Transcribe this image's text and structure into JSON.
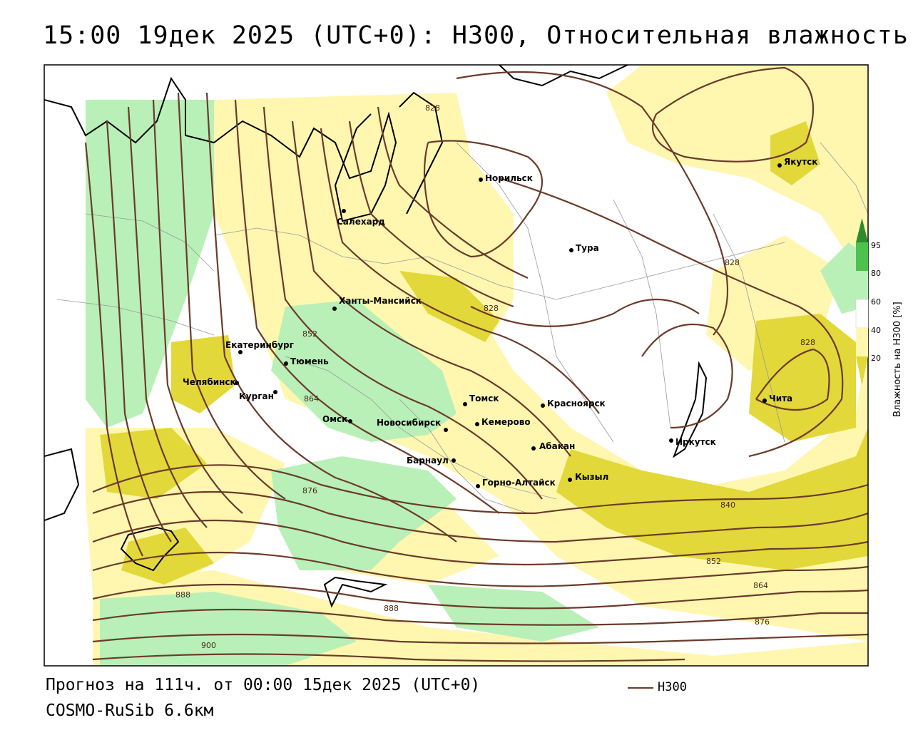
{
  "title": "15:00 19дек 2025 (UTC+0): H300, Относительная влажность",
  "forecast_line": "Прогноз на 111ч. от 00:00 15дек 2025 (UTC+0)",
  "model_line": "COSMO-RuSib 6.6км",
  "legend": {
    "line_label": "H300",
    "line_color": "#6b3b2a"
  },
  "colorbar": {
    "title": "Влажность на H300 [%]",
    "ticks": [
      "95",
      "80",
      "60",
      "40",
      "20"
    ],
    "colors": {
      "gt95": "#2e8b2e",
      "80_95": "#4cc24c",
      "60_80": "#b8f0b8",
      "40_60": "#ffffff",
      "20_40": "#fff7b0",
      "lt20": "#e2d83a"
    }
  },
  "cities": [
    {
      "name": "Норильск"
    },
    {
      "name": "Якутск"
    },
    {
      "name": "Салехард"
    },
    {
      "name": "Тура"
    },
    {
      "name": "Ханты-Мансийск"
    },
    {
      "name": "Екатеринбург"
    },
    {
      "name": "Тюмень"
    },
    {
      "name": "Челябинск"
    },
    {
      "name": "Курган"
    },
    {
      "name": "Омск"
    },
    {
      "name": "Новосибирск"
    },
    {
      "name": "Томск"
    },
    {
      "name": "Кемерово"
    },
    {
      "name": "Красноярск"
    },
    {
      "name": "Барнаул"
    },
    {
      "name": "Абакан"
    },
    {
      "name": "Иркутск"
    },
    {
      "name": "Чита"
    },
    {
      "name": "Горно-Алтайск"
    },
    {
      "name": "Кызыл"
    }
  ],
  "contour_labels": [
    "828",
    "828",
    "828",
    "828",
    "852",
    "864",
    "876",
    "888",
    "888",
    "900",
    "840",
    "852",
    "864",
    "876"
  ]
}
